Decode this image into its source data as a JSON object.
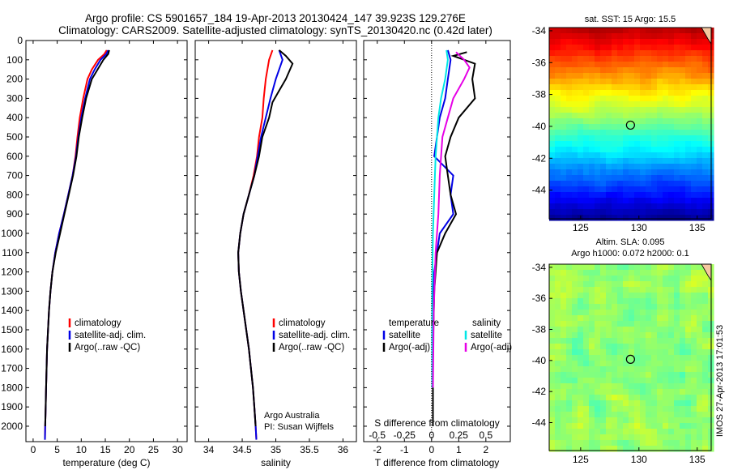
{
  "header": {
    "title_line1": "Argo profile: CS 5901657_184 19-Apr-2013 20130424_147 39.923S 129.276E",
    "title_line2": "Climatology: CARS2009. Satellite-adjusted climatology: synTS_20130420.nc (0.42d later)"
  },
  "colors": {
    "climatology": "#ff0000",
    "satellite": "#0000e6",
    "argo": "#000000",
    "satellite_salinity": "#00e6e6",
    "argo_adj_salinity": "#e600e6"
  },
  "chart_data": [
    {
      "type": "line",
      "panel": "temperature",
      "xlabel": "temperature (deg C)",
      "ylabel": "",
      "xlim": [
        -1.5,
        32
      ],
      "ylim": [
        2080,
        0
      ],
      "x_ticks": [
        "0",
        "5",
        "10",
        "15",
        "20",
        "25",
        "30"
      ],
      "y_ticks": [
        "0",
        "100",
        "200",
        "300",
        "400",
        "500",
        "600",
        "700",
        "800",
        "900",
        "1000",
        "1100",
        "1200",
        "1300",
        "1400",
        "1500",
        "1600",
        "1700",
        "1800",
        "1900",
        "2000"
      ],
      "legend_labels": [
        "climatology",
        "satellite-adj. clim.",
        "Argo(..raw -QC)"
      ],
      "series": [
        {
          "name": "climatology",
          "color": "#ff0000",
          "points": [
            [
              15.3,
              50
            ],
            [
              14.8,
              70
            ],
            [
              13.5,
              100
            ],
            [
              12.2,
              150
            ],
            [
              11.3,
              200
            ],
            [
              10.4,
              300
            ],
            [
              9.7,
              400
            ],
            [
              9.2,
              500
            ],
            [
              8.8,
              600
            ],
            [
              8.2,
              700
            ],
            [
              7.3,
              800
            ],
            [
              6.4,
              900
            ],
            [
              5.4,
              1000
            ],
            [
              4.6,
              1100
            ],
            [
              4.0,
              1200
            ],
            [
              3.6,
              1300
            ],
            [
              3.3,
              1400
            ],
            [
              3.1,
              1500
            ],
            [
              2.9,
              1600
            ],
            [
              2.8,
              1700
            ],
            [
              2.7,
              1800
            ],
            [
              2.6,
              1900
            ],
            [
              2.5,
              2000
            ],
            [
              2.45,
              2070
            ]
          ]
        },
        {
          "name": "satellite-adj. clim.",
          "color": "#0000e6",
          "points": [
            [
              15.6,
              50
            ],
            [
              15.2,
              70
            ],
            [
              14.0,
              100
            ],
            [
              12.8,
              150
            ],
            [
              11.8,
              200
            ],
            [
              10.8,
              300
            ],
            [
              10.0,
              400
            ],
            [
              9.4,
              500
            ],
            [
              8.9,
              600
            ],
            [
              8.2,
              700
            ],
            [
              7.3,
              800
            ],
            [
              6.4,
              900
            ],
            [
              5.4,
              1000
            ],
            [
              4.6,
              1100
            ],
            [
              4.0,
              1200
            ],
            [
              3.6,
              1300
            ],
            [
              3.3,
              1400
            ],
            [
              3.1,
              1500
            ],
            [
              2.9,
              1600
            ],
            [
              2.8,
              1700
            ],
            [
              2.7,
              1800
            ],
            [
              2.6,
              1900
            ],
            [
              2.5,
              2000
            ],
            [
              2.45,
              2070
            ]
          ]
        },
        {
          "name": "Argo(..raw -QC)",
          "color": "#000000",
          "points": [
            [
              15.8,
              50
            ],
            [
              15.6,
              70
            ],
            [
              14.6,
              100
            ],
            [
              13.4,
              150
            ],
            [
              12.2,
              200
            ],
            [
              11.0,
              300
            ],
            [
              10.2,
              400
            ],
            [
              9.5,
              500
            ],
            [
              9.0,
              600
            ],
            [
              8.3,
              700
            ],
            [
              7.4,
              800
            ],
            [
              6.5,
              900
            ],
            [
              5.6,
              1000
            ],
            [
              4.7,
              1100
            ],
            [
              4.0,
              1200
            ],
            [
              3.6,
              1300
            ],
            [
              3.3,
              1400
            ],
            [
              3.1,
              1500
            ],
            [
              2.9,
              1600
            ],
            [
              2.8,
              1700
            ],
            [
              2.7,
              1800
            ],
            [
              2.6,
              1900
            ],
            [
              2.5,
              2000
            ]
          ]
        }
      ]
    },
    {
      "type": "line",
      "panel": "salinity",
      "xlabel": "salinity",
      "xlim": [
        33.8,
        36.2
      ],
      "ylim": [
        2080,
        0
      ],
      "x_ticks": [
        "34",
        "34.5",
        "35",
        "35.5",
        "36"
      ],
      "legend_labels": [
        "climatology",
        "satellite-adj. clim.",
        "Argo(..raw -QC)"
      ],
      "annotation": [
        "Argo Australia",
        "PI: Susan Wijffels"
      ],
      "series": [
        {
          "name": "climatology",
          "color": "#ff0000",
          "points": [
            [
              34.95,
              50
            ],
            [
              34.9,
              100
            ],
            [
              34.85,
              200
            ],
            [
              34.82,
              300
            ],
            [
              34.8,
              400
            ],
            [
              34.75,
              500
            ],
            [
              34.72,
              600
            ],
            [
              34.67,
              700
            ],
            [
              34.6,
              800
            ],
            [
              34.52,
              900
            ],
            [
              34.47,
              1000
            ],
            [
              34.44,
              1100
            ],
            [
              34.45,
              1200
            ],
            [
              34.48,
              1300
            ],
            [
              34.52,
              1400
            ],
            [
              34.56,
              1500
            ],
            [
              34.6,
              1600
            ],
            [
              34.63,
              1700
            ],
            [
              34.66,
              1800
            ],
            [
              34.68,
              1900
            ],
            [
              34.7,
              2000
            ],
            [
              34.71,
              2070
            ]
          ]
        },
        {
          "name": "satellite-adj. clim.",
          "color": "#0000e6",
          "points": [
            [
              35.05,
              50
            ],
            [
              35.1,
              100
            ],
            [
              35.0,
              200
            ],
            [
              34.92,
              300
            ],
            [
              34.85,
              400
            ],
            [
              34.78,
              500
            ],
            [
              34.73,
              600
            ],
            [
              34.68,
              700
            ],
            [
              34.6,
              800
            ],
            [
              34.52,
              900
            ],
            [
              34.47,
              1000
            ],
            [
              34.44,
              1100
            ],
            [
              34.45,
              1200
            ],
            [
              34.48,
              1300
            ],
            [
              34.52,
              1400
            ],
            [
              34.56,
              1500
            ],
            [
              34.6,
              1600
            ],
            [
              34.63,
              1700
            ],
            [
              34.66,
              1800
            ],
            [
              34.68,
              1900
            ],
            [
              34.7,
              2000
            ],
            [
              34.71,
              2070
            ]
          ]
        },
        {
          "name": "Argo(..raw -QC)",
          "color": "#000000",
          "points": [
            [
              35.05,
              50
            ],
            [
              35.15,
              80
            ],
            [
              35.25,
              120
            ],
            [
              35.15,
              200
            ],
            [
              35.05,
              260
            ],
            [
              34.95,
              320
            ],
            [
              34.9,
              400
            ],
            [
              34.8,
              500
            ],
            [
              34.75,
              600
            ],
            [
              34.68,
              700
            ],
            [
              34.6,
              800
            ],
            [
              34.52,
              900
            ],
            [
              34.47,
              1000
            ],
            [
              34.44,
              1100
            ],
            [
              34.45,
              1200
            ],
            [
              34.48,
              1300
            ],
            [
              34.52,
              1400
            ],
            [
              34.56,
              1500
            ],
            [
              34.6,
              1600
            ],
            [
              34.63,
              1700
            ],
            [
              34.66,
              1800
            ],
            [
              34.68,
              1900
            ],
            [
              34.7,
              2000
            ]
          ]
        }
      ]
    },
    {
      "type": "line",
      "panel": "difference",
      "xlabel": "T difference from climatology",
      "xlabel_top": "S difference from climatology",
      "xlim": [
        -2.5,
        2.9
      ],
      "ylim": [
        2080,
        0
      ],
      "x_ticks": [
        "-2",
        "-1",
        "0",
        "1",
        "2"
      ],
      "x_ticks_salinity": [
        "-0.5",
        "-0.25",
        "0",
        "0.25",
        "0.5"
      ],
      "legend": {
        "temperature_title": "temperature",
        "salinity_title": "salinity",
        "temperature_items": [
          "satellite",
          "Argo(-adj)"
        ],
        "salinity_items": [
          "satellite",
          "Argo(-adj)"
        ]
      },
      "series": [
        {
          "name": "T satellite",
          "color": "#0000e6",
          "points": [
            [
              0.6,
              50
            ],
            [
              0.7,
              100
            ],
            [
              0.6,
              200
            ],
            [
              0.5,
              300
            ],
            [
              0.3,
              400
            ],
            [
              0.2,
              500
            ],
            [
              0.1,
              600
            ],
            [
              0.8,
              700
            ],
            [
              0.7,
              800
            ],
            [
              0.8,
              900
            ],
            [
              0.3,
              1000
            ],
            [
              0.2,
              1100
            ],
            [
              0.1,
              1200
            ],
            [
              0.05,
              1400
            ],
            [
              0.05,
              1700
            ],
            [
              0.05,
              2000
            ]
          ]
        },
        {
          "name": "T Argo(-adj)",
          "color": "#000000",
          "points": [
            [
              1.3,
              60
            ],
            [
              0.8,
              80
            ],
            [
              1.6,
              120
            ],
            [
              1.5,
              200
            ],
            [
              1.6,
              300
            ],
            [
              1.0,
              400
            ],
            [
              0.7,
              500
            ],
            [
              0.5,
              600
            ],
            [
              0.6,
              700
            ],
            [
              0.7,
              800
            ],
            [
              0.9,
              900
            ],
            [
              0.5,
              1000
            ],
            [
              0.2,
              1100
            ],
            [
              0.1,
              1300
            ],
            [
              0.05,
              1600
            ],
            [
              0.05,
              2000
            ]
          ]
        },
        {
          "name": "S satellite",
          "color": "#00e6e6",
          "points": [
            [
              0.55,
              50
            ],
            [
              0.6,
              100
            ],
            [
              0.5,
              200
            ],
            [
              0.35,
              300
            ],
            [
              0.25,
              400
            ],
            [
              0.15,
              600
            ],
            [
              0.1,
              800
            ],
            [
              0.05,
              1000
            ],
            [
              0.02,
              1300
            ],
            [
              0.02,
              1800
            ]
          ]
        },
        {
          "name": "S Argo(-adj)",
          "color": "#e600e6",
          "points": [
            [
              0.9,
              60
            ],
            [
              1.2,
              100
            ],
            [
              1.4,
              140
            ],
            [
              1.2,
              200
            ],
            [
              0.8,
              300
            ],
            [
              0.6,
              400
            ],
            [
              0.4,
              500
            ],
            [
              0.3,
              700
            ],
            [
              0.25,
              900
            ],
            [
              0.15,
              1100
            ],
            [
              0.08,
              1400
            ],
            [
              0.05,
              1800
            ]
          ]
        }
      ]
    },
    {
      "type": "heatmap",
      "panel": "sst_map",
      "title": "sat. SST: 15 Argo: 15.5",
      "x_ticks": [
        "125",
        "130",
        "135"
      ],
      "y_ticks": [
        "-34",
        "-36",
        "-38",
        "-40",
        "-42",
        "-44"
      ],
      "xlim": [
        122.3,
        136.2
      ],
      "ylim": [
        -45.8,
        -33.8
      ],
      "marker": {
        "lon": 129.276,
        "lat": -39.923
      }
    },
    {
      "type": "heatmap",
      "panel": "sla_map",
      "title_line1": "Altim. SLA: 0.095",
      "title_line2": "Argo h1000: 0.072 h2000: 0.1",
      "x_ticks": [
        "125",
        "130",
        "135"
      ],
      "y_ticks": [
        "-34",
        "-36",
        "-38",
        "-40",
        "-42",
        "-44"
      ],
      "xlim": [
        122.3,
        136.2
      ],
      "ylim": [
        -45.8,
        -33.8
      ],
      "marker": {
        "lon": 129.276,
        "lat": -39.923
      }
    }
  ],
  "footer": {
    "side_label": "IMOS 27-Apr-2013 17:01:53"
  }
}
